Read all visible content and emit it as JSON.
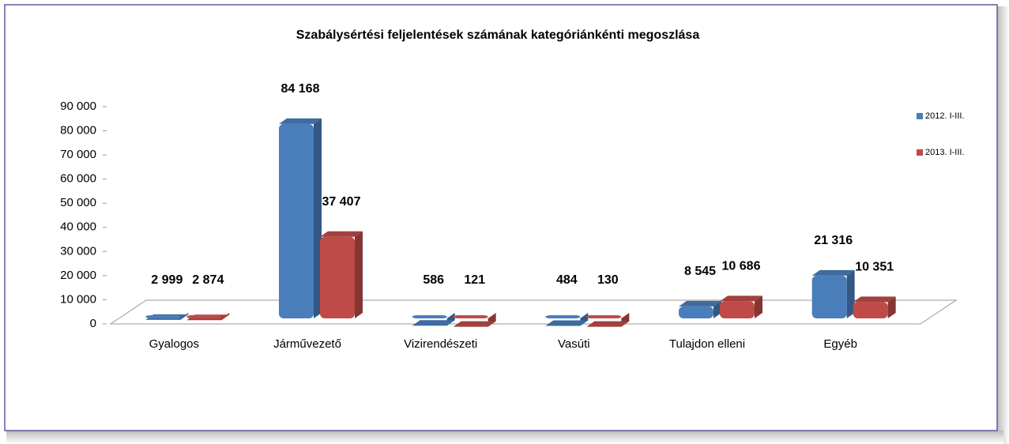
{
  "chart_data": {
    "type": "bar",
    "title": "Szabálysértési feljelentések számának kategóriánkénti megoszlása",
    "categories": [
      "Gyalogos",
      "Járművezető",
      "Vizirendészeti",
      "Vasúti",
      "Tulajdon elleni",
      "Egyéb"
    ],
    "series": [
      {
        "name": "2012. I-III.",
        "color": "#4a7ebb",
        "values": [
          2999,
          84168,
          586,
          484,
          8545,
          21316
        ],
        "value_labels": [
          "2 999",
          "84 168",
          "586",
          "484",
          "8 545",
          "21 316"
        ]
      },
      {
        "name": "2013. I-III.",
        "color": "#be4b48",
        "values": [
          2874,
          37407,
          121,
          130,
          10686,
          10351
        ],
        "value_labels": [
          "2 874",
          "37 407",
          "121",
          "130",
          "10 686",
          "10 351"
        ]
      }
    ],
    "ylim": [
      0,
      90000
    ],
    "yticks": [
      0,
      {
        "value": 10000,
        "label": "10 000"
      },
      {
        "value": 20000,
        "label": "20 000"
      },
      {
        "value": 30000,
        "label": "30 000"
      },
      {
        "value": 40000,
        "label": "40 000"
      },
      {
        "value": 50000,
        "label": "50 000"
      },
      {
        "value": 60000,
        "label": "60 000"
      },
      {
        "value": 70000,
        "label": "70 000"
      },
      {
        "value": 80000,
        "label": "80 000"
      },
      {
        "value": 90000,
        "label": "90 000"
      }
    ],
    "legend": "right"
  }
}
